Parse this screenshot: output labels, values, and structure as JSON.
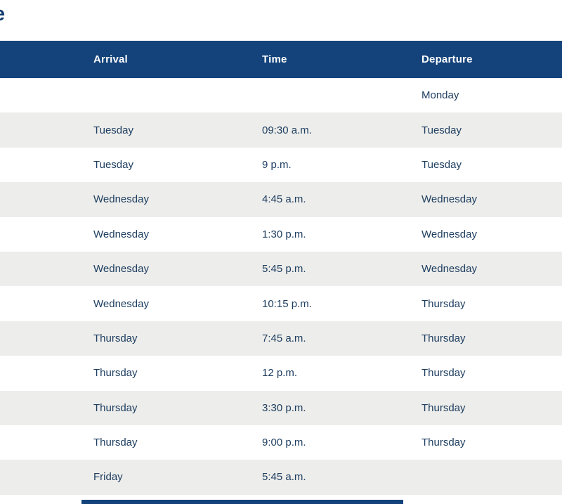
{
  "page": {
    "partial_heading_letter": "e"
  },
  "table": {
    "columns": [
      {
        "key": "arrival",
        "label": "Arrival"
      },
      {
        "key": "time",
        "label": "Time"
      },
      {
        "key": "departure",
        "label": "Departure"
      }
    ],
    "rows": [
      {
        "arrival": "",
        "time": "",
        "departure": "Monday"
      },
      {
        "arrival": "Tuesday",
        "time": "09:30 a.m.",
        "departure": "Tuesday"
      },
      {
        "arrival": "Tuesday",
        "time": "9 p.m.",
        "departure": "Tuesday"
      },
      {
        "arrival": "Wednesday",
        "time": "4:45 a.m.",
        "departure": "Wednesday"
      },
      {
        "arrival": "Wednesday",
        "time": "1:30 p.m.",
        "departure": "Wednesday"
      },
      {
        "arrival": "Wednesday",
        "time": "5:45 p.m.",
        "departure": "Wednesday"
      },
      {
        "arrival": "Wednesday",
        "time": "10:15 p.m.",
        "departure": "Thursday"
      },
      {
        "arrival": "Thursday",
        "time": "7:45 a.m.",
        "departure": "Thursday"
      },
      {
        "arrival": "Thursday",
        "time": "12 p.m.",
        "departure": "Thursday"
      },
      {
        "arrival": "Thursday",
        "time": "3:30 p.m.",
        "departure": "Thursday"
      },
      {
        "arrival": "Thursday",
        "time": "9:00 p.m.",
        "departure": "Thursday"
      },
      {
        "arrival": "Friday",
        "time": "5:45 a.m.",
        "departure": ""
      }
    ]
  },
  "colors": {
    "header_bg": "#14437B",
    "header_text": "#FFFFFF",
    "row_text": "#1E3E60",
    "row_alt_bg": "#EDEDEB",
    "row_bg": "#FFFFFF",
    "accent_navy": "#123C6E"
  }
}
